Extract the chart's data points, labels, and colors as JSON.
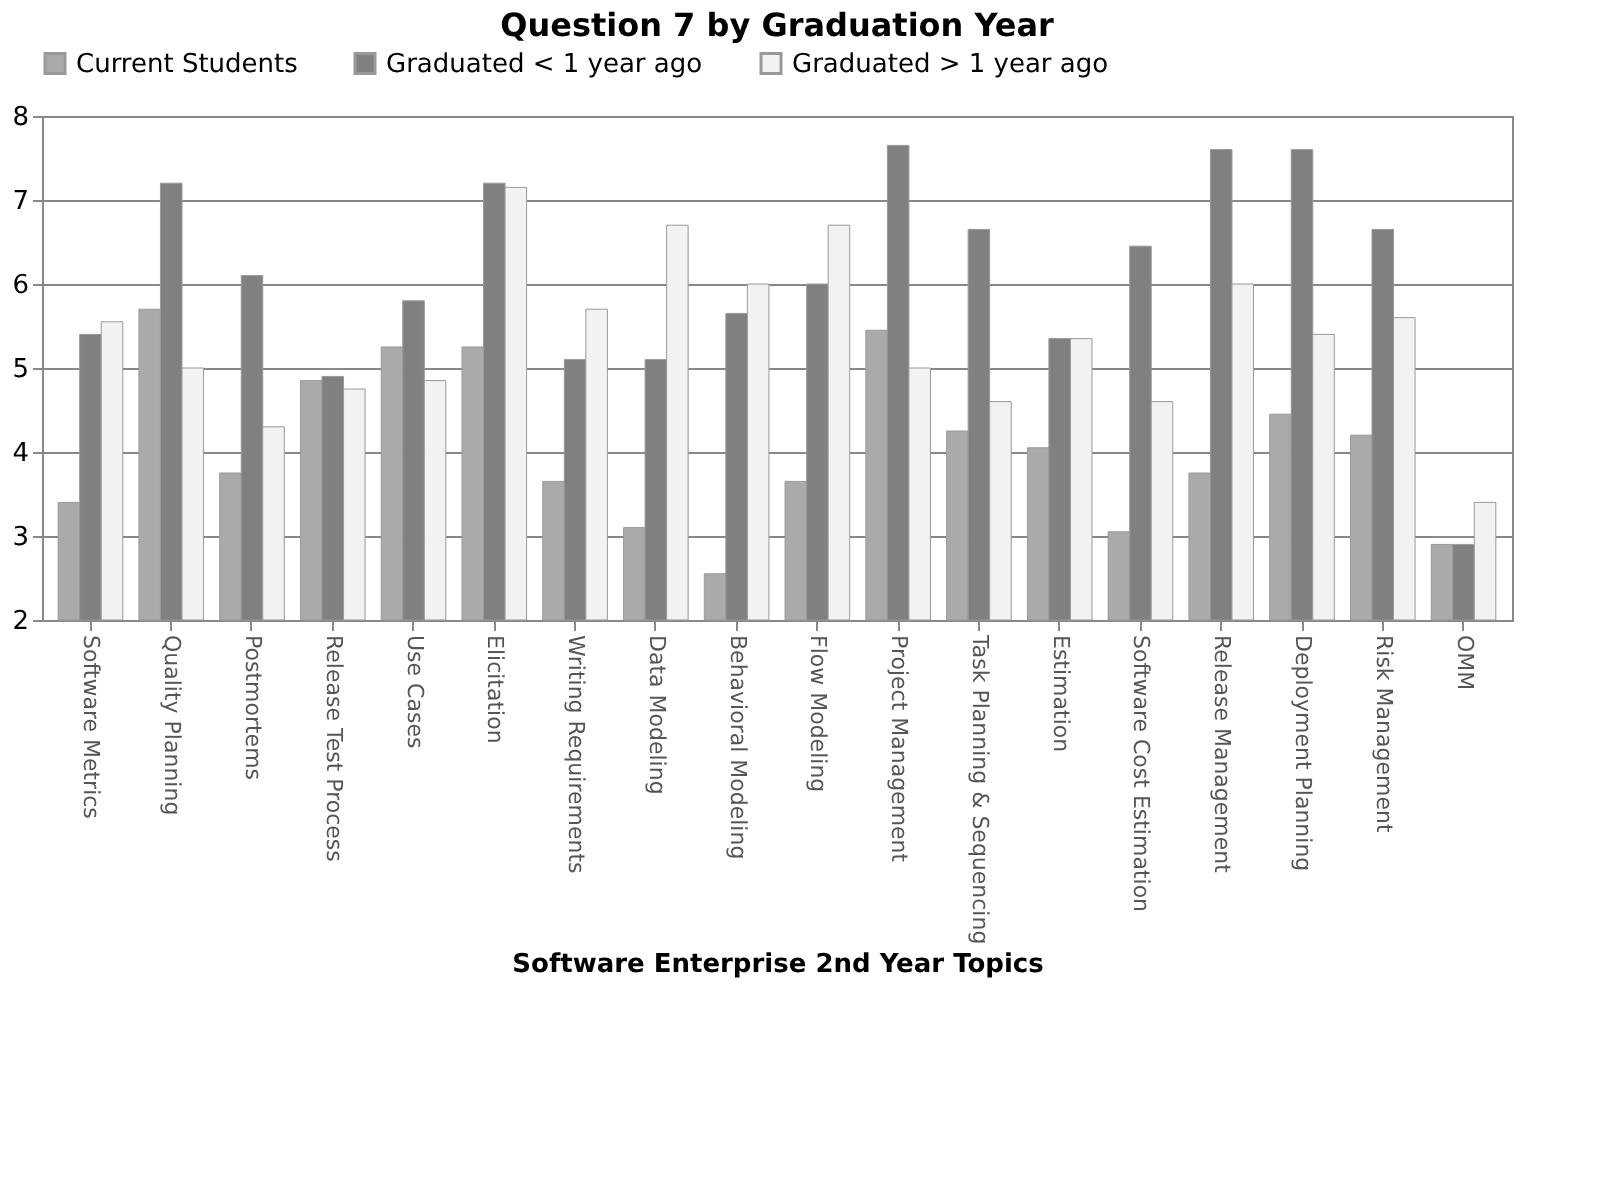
{
  "chart_data": {
    "type": "bar",
    "title": "Question 7 by Graduation Year",
    "xlabel": "Software Enterprise 2nd Year Topics",
    "categories": [
      "Software Metrics",
      "Quality Planning",
      "Postmortems",
      "Release Test Process",
      "Use Cases",
      "Elicitation",
      "Writing Requirements",
      "Data Modeling",
      "Behavioral Modeling",
      "Flow Modeling",
      "Project Management",
      "Task Planning & Sequencing",
      "Estimation",
      "Software Cost Estimation",
      "Release Management",
      "Deployment Planning",
      "Risk Management",
      "OMM"
    ],
    "series": [
      {
        "name": "Current Students",
        "color": "#aaaaaa",
        "values": [
          3.4,
          5.7,
          3.75,
          4.85,
          5.25,
          5.25,
          3.65,
          3.1,
          2.55,
          3.65,
          5.45,
          4.25,
          4.05,
          3.05,
          3.75,
          4.45,
          4.2,
          2.9
        ]
      },
      {
        "name": "Graduated < 1 year ago",
        "color": "#808080",
        "values": [
          5.4,
          7.2,
          6.1,
          4.9,
          5.8,
          7.2,
          5.1,
          5.1,
          5.65,
          6.0,
          7.65,
          6.65,
          5.35,
          6.45,
          7.6,
          7.6,
          6.65,
          2.9
        ]
      },
      {
        "name": "Graduated > 1 year ago",
        "color": "#f2f2f2",
        "values": [
          5.55,
          5.0,
          4.3,
          4.75,
          4.85,
          7.15,
          5.7,
          6.7,
          6.0,
          6.7,
          5.0,
          4.6,
          5.35,
          4.6,
          6.0,
          5.4,
          5.6,
          3.4
        ]
      }
    ],
    "ylim": [
      2,
      8
    ],
    "yticks": [
      2,
      3,
      4,
      5,
      6,
      7,
      8
    ],
    "grid": "y",
    "legend": "top"
  }
}
